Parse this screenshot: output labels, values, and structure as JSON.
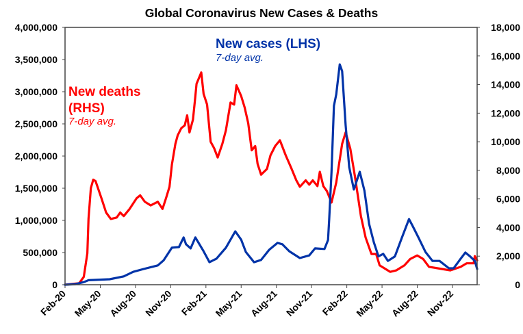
{
  "chart_data": {
    "type": "line",
    "title": "Global Coronavirus New Cases & Deaths",
    "x_unit": "months since Feb 2020",
    "xlim": [
      0,
      35.1
    ],
    "x_ticks": [
      {
        "x": 0,
        "label": "Feb-20"
      },
      {
        "x": 3,
        "label": "May-20"
      },
      {
        "x": 6,
        "label": "Aug-20"
      },
      {
        "x": 9,
        "label": "Nov-20"
      },
      {
        "x": 12,
        "label": "Feb-21"
      },
      {
        "x": 15,
        "label": "May-21"
      },
      {
        "x": 18,
        "label": "Aug-21"
      },
      {
        "x": 21,
        "label": "Nov-21"
      },
      {
        "x": 24,
        "label": "Feb-22"
      },
      {
        "x": 27,
        "label": "May-22"
      },
      {
        "x": 30,
        "label": "Aug-22"
      },
      {
        "x": 33,
        "label": "Nov-22"
      }
    ],
    "y_left": {
      "lim": [
        0,
        4000000
      ],
      "ticks": [
        "0",
        "500,000",
        "1,000,000",
        "1,500,000",
        "2,000,000",
        "2,500,000",
        "3,000,000",
        "3,500,000",
        "4,000,000"
      ]
    },
    "y_right": {
      "lim": [
        0,
        18000
      ],
      "ticks": [
        "0",
        "2,000",
        "4,000",
        "6,000",
        "8,000",
        "10,000",
        "12,000",
        "14,000",
        "16,000",
        "18,000"
      ]
    },
    "grid": false,
    "series": [
      {
        "name": "New cases (LHS)",
        "subtitle": "7-day avg.",
        "axis": "left",
        "color": "#0033A8",
        "points": [
          [
            0,
            0
          ],
          [
            0.9,
            10000
          ],
          [
            1.6,
            40000
          ],
          [
            2.0,
            70000
          ],
          [
            3.8,
            85000
          ],
          [
            5.0,
            130000
          ],
          [
            5.8,
            200000
          ],
          [
            6.7,
            245000
          ],
          [
            7.9,
            300000
          ],
          [
            8.4,
            380000
          ],
          [
            9.1,
            575000
          ],
          [
            9.7,
            585000
          ],
          [
            10.1,
            735000
          ],
          [
            10.3,
            630000
          ],
          [
            10.7,
            565000
          ],
          [
            11.1,
            735000
          ],
          [
            11.8,
            520000
          ],
          [
            12.3,
            350000
          ],
          [
            12.9,
            405000
          ],
          [
            13.7,
            575000
          ],
          [
            14.5,
            830000
          ],
          [
            15.0,
            700000
          ],
          [
            15.4,
            510000
          ],
          [
            16.1,
            350000
          ],
          [
            16.7,
            385000
          ],
          [
            17.4,
            545000
          ],
          [
            18.1,
            650000
          ],
          [
            18.5,
            630000
          ],
          [
            19.1,
            520000
          ],
          [
            20.0,
            415000
          ],
          [
            20.8,
            455000
          ],
          [
            21.3,
            565000
          ],
          [
            22.1,
            555000
          ],
          [
            22.4,
            695000
          ],
          [
            22.5,
            1020000
          ],
          [
            22.7,
            1755000
          ],
          [
            22.9,
            2780000
          ],
          [
            23.1,
            2960000
          ],
          [
            23.4,
            3425000
          ],
          [
            23.6,
            3320000
          ],
          [
            23.9,
            2480000
          ],
          [
            24.2,
            1830000
          ],
          [
            24.6,
            1480000
          ],
          [
            25.1,
            1755000
          ],
          [
            25.5,
            1460000
          ],
          [
            25.9,
            945000
          ],
          [
            26.3,
            660000
          ],
          [
            26.7,
            440000
          ],
          [
            27.1,
            480000
          ],
          [
            27.5,
            370000
          ],
          [
            28.1,
            440000
          ],
          [
            28.7,
            735000
          ],
          [
            29.3,
            1020000
          ],
          [
            29.6,
            915000
          ],
          [
            30.1,
            735000
          ],
          [
            30.7,
            510000
          ],
          [
            31.3,
            370000
          ],
          [
            31.9,
            370000
          ],
          [
            32.7,
            255000
          ],
          [
            33.1,
            255000
          ],
          [
            33.7,
            405000
          ],
          [
            34.1,
            500000
          ],
          [
            34.5,
            440000
          ],
          [
            34.9,
            370000
          ],
          [
            35.1,
            245000
          ]
        ]
      },
      {
        "name_line1": "New deaths",
        "name_line2": "(RHS)",
        "subtitle": "7-day avg.",
        "axis": "right",
        "color": "#FF0000",
        "points": [
          [
            0,
            0
          ],
          [
            1.2,
            100
          ],
          [
            1.6,
            550
          ],
          [
            1.9,
            2200
          ],
          [
            2.0,
            4600
          ],
          [
            2.2,
            6750
          ],
          [
            2.4,
            7350
          ],
          [
            2.6,
            7250
          ],
          [
            3.1,
            6050
          ],
          [
            3.5,
            5050
          ],
          [
            3.9,
            4600
          ],
          [
            4.4,
            4700
          ],
          [
            4.7,
            5050
          ],
          [
            5.0,
            4800
          ],
          [
            5.5,
            5300
          ],
          [
            6.1,
            6050
          ],
          [
            6.4,
            6250
          ],
          [
            6.8,
            5800
          ],
          [
            7.3,
            5550
          ],
          [
            7.9,
            5800
          ],
          [
            8.3,
            5300
          ],
          [
            8.6,
            6050
          ],
          [
            8.9,
            6850
          ],
          [
            9.1,
            8400
          ],
          [
            9.4,
            9850
          ],
          [
            9.6,
            10450
          ],
          [
            9.9,
            10950
          ],
          [
            10.2,
            11150
          ],
          [
            10.4,
            11850
          ],
          [
            10.6,
            10650
          ],
          [
            10.9,
            11550
          ],
          [
            11.1,
            13200
          ],
          [
            11.2,
            14050
          ],
          [
            11.6,
            14850
          ],
          [
            11.8,
            13350
          ],
          [
            12.1,
            12600
          ],
          [
            12.4,
            10000
          ],
          [
            12.7,
            9550
          ],
          [
            13.0,
            8900
          ],
          [
            13.4,
            9850
          ],
          [
            13.7,
            10800
          ],
          [
            14.1,
            12750
          ],
          [
            14.4,
            12600
          ],
          [
            14.6,
            13950
          ],
          [
            15.0,
            13200
          ],
          [
            15.3,
            12400
          ],
          [
            15.6,
            11300
          ],
          [
            15.9,
            9400
          ],
          [
            16.2,
            9700
          ],
          [
            16.4,
            8450
          ],
          [
            16.7,
            7700
          ],
          [
            17.2,
            8100
          ],
          [
            17.5,
            9050
          ],
          [
            17.9,
            9700
          ],
          [
            18.3,
            10100
          ],
          [
            18.8,
            9050
          ],
          [
            19.3,
            8100
          ],
          [
            19.7,
            7300
          ],
          [
            20.0,
            6850
          ],
          [
            20.5,
            7300
          ],
          [
            20.8,
            7000
          ],
          [
            21.1,
            7300
          ],
          [
            21.5,
            6900
          ],
          [
            21.7,
            7900
          ],
          [
            22.0,
            6900
          ],
          [
            22.3,
            6550
          ],
          [
            22.7,
            5750
          ],
          [
            23.1,
            7150
          ],
          [
            23.6,
            9850
          ],
          [
            23.9,
            10650
          ],
          [
            24.3,
            9500
          ],
          [
            24.7,
            7550
          ],
          [
            25.2,
            4800
          ],
          [
            25.6,
            3300
          ],
          [
            26.1,
            2150
          ],
          [
            26.5,
            2150
          ],
          [
            26.8,
            1350
          ],
          [
            27.7,
            900
          ],
          [
            28.2,
            1000
          ],
          [
            28.9,
            1350
          ],
          [
            29.4,
            1800
          ],
          [
            30.0,
            2050
          ],
          [
            30.5,
            1800
          ],
          [
            31.0,
            1250
          ],
          [
            32.1,
            1100
          ],
          [
            32.8,
            1000
          ],
          [
            33.7,
            1250
          ],
          [
            34.2,
            1500
          ],
          [
            34.8,
            1500
          ],
          [
            34.9,
            2000
          ],
          [
            35.1,
            1700
          ]
        ]
      }
    ]
  }
}
